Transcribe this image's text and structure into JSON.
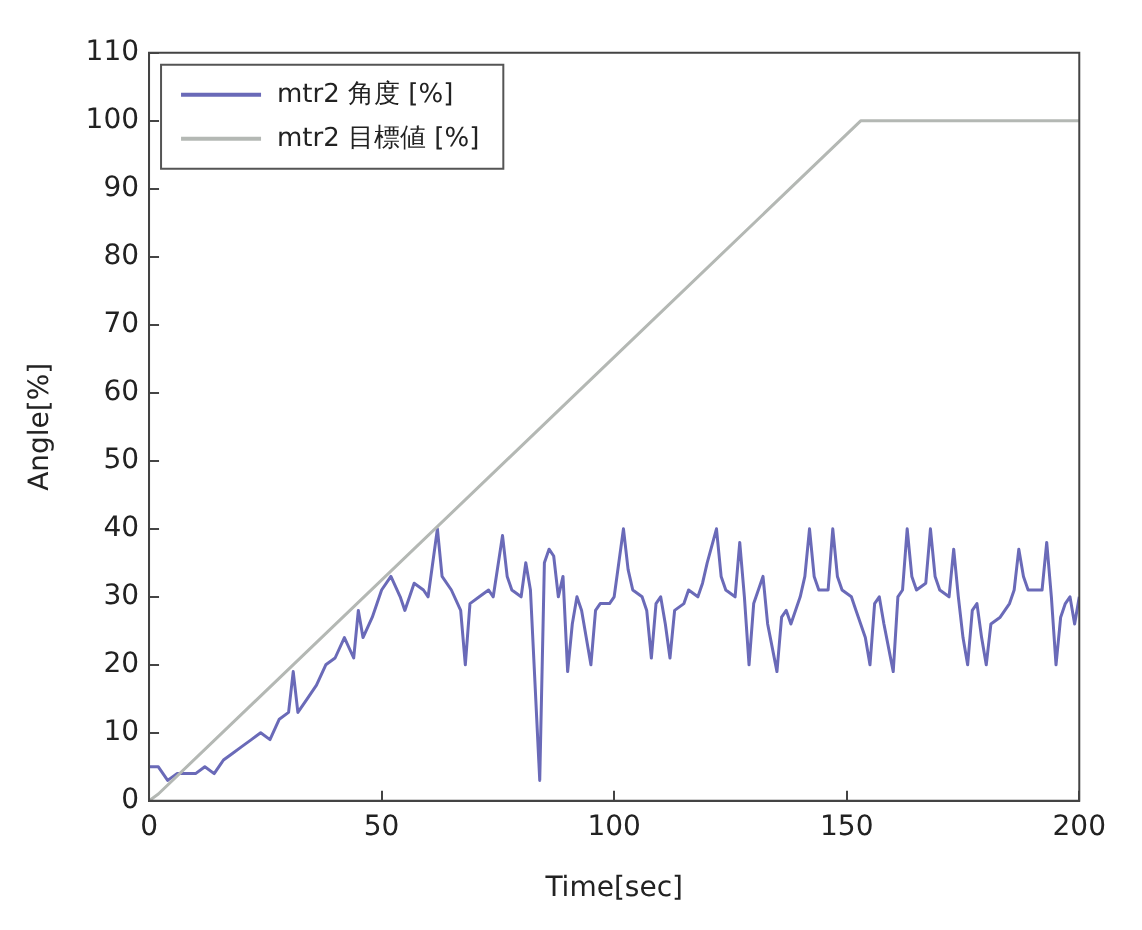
{
  "chart_data": {
    "type": "line",
    "xlabel": "Time[sec]",
    "ylabel": "Angle[%]",
    "xlim": [
      0,
      200
    ],
    "xticks": [
      0,
      50,
      100,
      150,
      200
    ],
    "ylim": [
      0,
      110
    ],
    "yticks": [
      0,
      10,
      20,
      30,
      40,
      50,
      60,
      70,
      80,
      90,
      100,
      110
    ],
    "grid": false,
    "legend": "top left",
    "marker": "none",
    "line_style": "solid",
    "series": [
      {
        "name": "mtr2 角度 [%]",
        "color": "#6a6ab8",
        "x": [
          0,
          2,
          4,
          6,
          8,
          10,
          12,
          14,
          16,
          18,
          20,
          22,
          24,
          26,
          28,
          30,
          31,
          32,
          34,
          36,
          38,
          40,
          42,
          44,
          45,
          46,
          48,
          50,
          52,
          54,
          55,
          57,
          59,
          60,
          62,
          63,
          65,
          67,
          68,
          69,
          71,
          73,
          74,
          76,
          77,
          78,
          80,
          81,
          82,
          84,
          85,
          86,
          87,
          88,
          89,
          90,
          91,
          92,
          93,
          95,
          96,
          97,
          99,
          100,
          101,
          102,
          103,
          104,
          106,
          107,
          108,
          109,
          110,
          111,
          112,
          113,
          115,
          116,
          118,
          119,
          120,
          122,
          123,
          124,
          126,
          127,
          128,
          129,
          130,
          131,
          132,
          133,
          135,
          136,
          137,
          138,
          140,
          141,
          142,
          143,
          144,
          146,
          147,
          148,
          149,
          151,
          152,
          154,
          155,
          156,
          157,
          158,
          160,
          161,
          162,
          163,
          164,
          165,
          167,
          168,
          169,
          170,
          172,
          173,
          174,
          175,
          176,
          177,
          178,
          179,
          180,
          181,
          183,
          184,
          185,
          186,
          187,
          188,
          189,
          191,
          192,
          193,
          194,
          195,
          196,
          197,
          198,
          199,
          200
        ],
        "values": [
          5,
          5,
          3,
          4,
          4,
          4,
          5,
          4,
          6,
          7,
          8,
          9,
          10,
          9,
          12,
          13,
          19,
          13,
          15,
          17,
          20,
          21,
          24,
          21,
          28,
          24,
          27,
          31,
          33,
          30,
          28,
          32,
          31,
          30,
          40,
          33,
          31,
          28,
          20,
          29,
          30,
          31,
          30,
          39,
          33,
          31,
          30,
          35,
          31,
          3,
          35,
          37,
          36,
          30,
          33,
          19,
          26,
          30,
          28,
          20,
          28,
          29,
          29,
          30,
          35,
          40,
          34,
          31,
          30,
          28,
          21,
          29,
          30,
          26,
          21,
          28,
          29,
          31,
          30,
          32,
          35,
          40,
          33,
          31,
          30,
          38,
          30,
          20,
          29,
          31,
          33,
          26,
          19,
          27,
          28,
          26,
          30,
          33,
          40,
          33,
          31,
          31,
          40,
          33,
          31,
          30,
          28,
          24,
          20,
          29,
          30,
          26,
          19,
          30,
          31,
          40,
          33,
          31,
          32,
          40,
          33,
          31,
          30,
          37,
          30,
          24,
          20,
          28,
          29,
          24,
          20,
          26,
          27,
          28,
          29,
          31,
          37,
          33,
          31,
          31,
          31,
          38,
          30,
          20,
          27,
          29,
          30,
          26,
          30
        ]
      },
      {
        "name": "mtr2 目標値 [%]",
        "color": "#b4b8b4",
        "x": [
          0,
          2,
          153,
          200
        ],
        "values": [
          0,
          1,
          100,
          100
        ]
      }
    ]
  }
}
